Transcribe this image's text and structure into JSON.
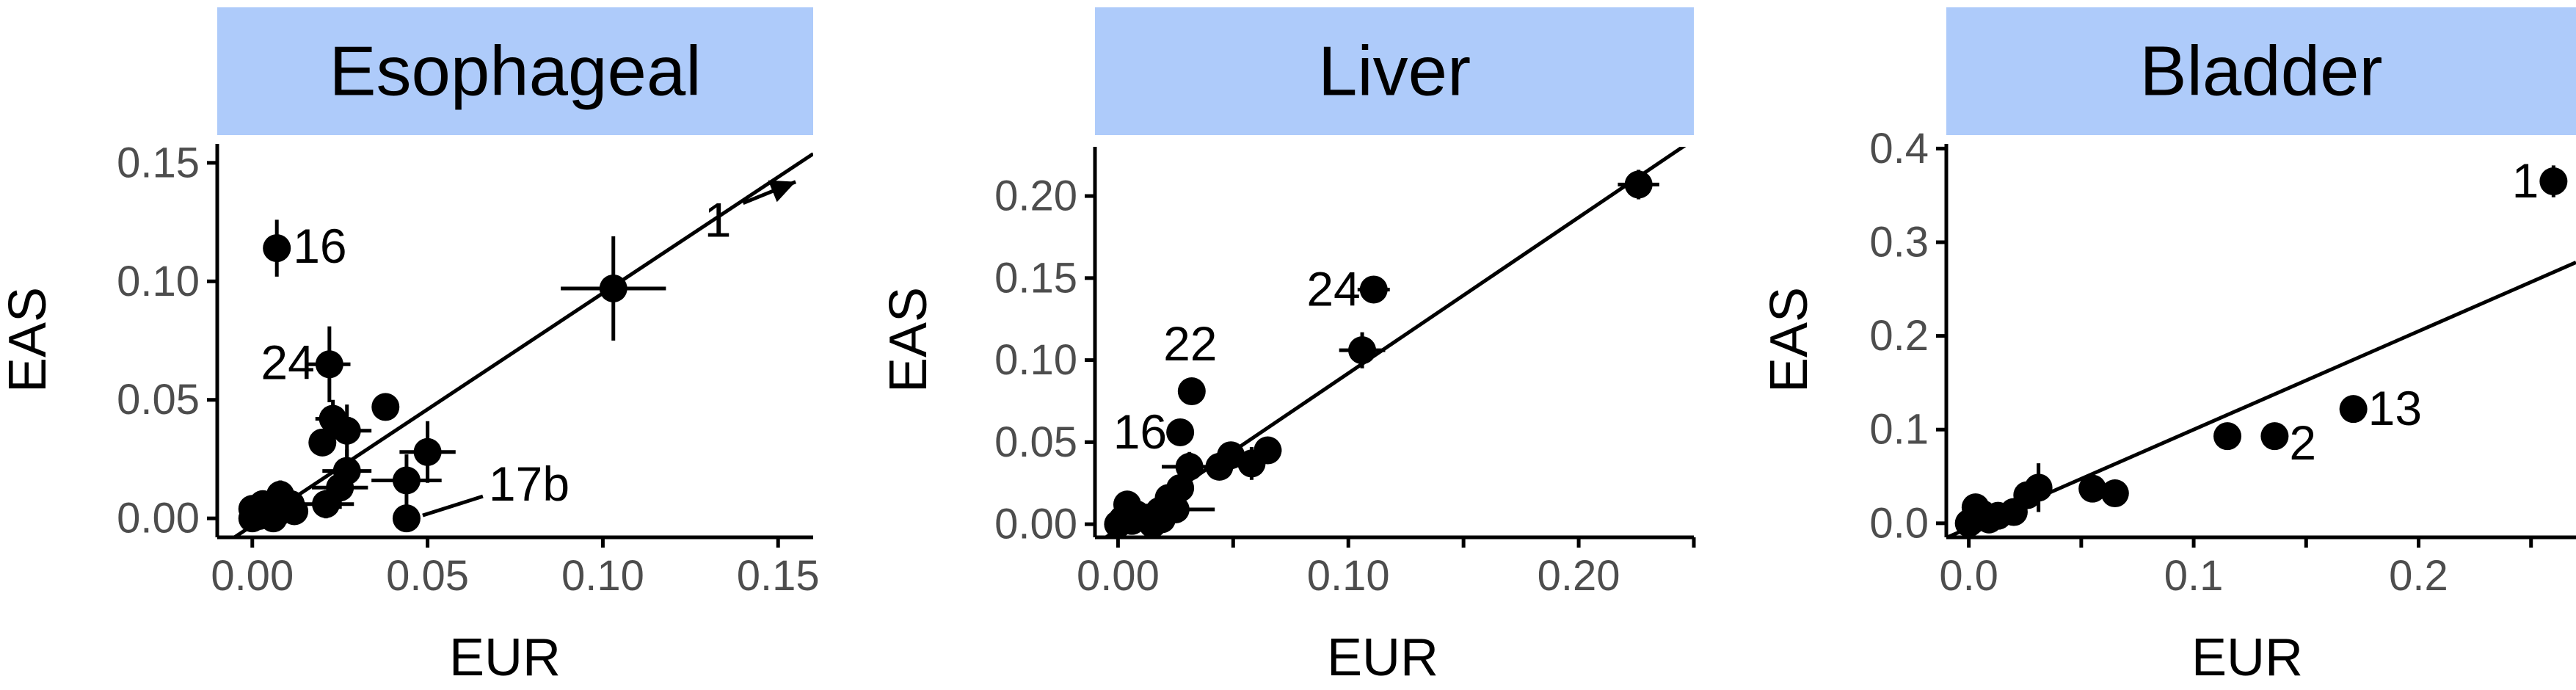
{
  "colors": {
    "strip": "#aecbfa",
    "point": "#000000",
    "axis": "#000000",
    "tick_label": "#4d4d4d"
  },
  "chart_data": [
    {
      "type": "scatter",
      "title": "Esophageal",
      "xlabel": "EUR",
      "ylabel": "EAS",
      "xlim": [
        -0.01,
        0.16
      ],
      "ylim": [
        -0.008,
        0.158
      ],
      "x_ticks": [
        "0.00",
        "0.05",
        "0.10",
        "0.15"
      ],
      "y_ticks": [
        "0.00",
        "0.05",
        "0.10",
        "0.15"
      ],
      "x_tick_values": [
        0,
        0.05,
        0.1,
        0.15
      ],
      "y_tick_values": [
        0,
        0.05,
        0.1,
        0.15
      ],
      "fit_line": {
        "slope": 0.98,
        "intercept": -0.003
      },
      "points": [
        {
          "x": 0.007,
          "y": 0.114,
          "ex": 0.002,
          "ey": 0.012,
          "label": "16"
        },
        {
          "x": 0.103,
          "y": 0.097,
          "ex": 0.015,
          "ey": 0.022,
          "label": ""
        },
        {
          "x": 0.022,
          "y": 0.065,
          "ex": 0.006,
          "ey": 0.016,
          "label": "24"
        },
        {
          "x": 0.038,
          "y": 0.047,
          "ex": 0.0,
          "ey": 0.0,
          "label": ""
        },
        {
          "x": 0.023,
          "y": 0.042,
          "ex": 0.005,
          "ey": 0.008,
          "label": ""
        },
        {
          "x": 0.027,
          "y": 0.037,
          "ex": 0.007,
          "ey": 0.011,
          "label": ""
        },
        {
          "x": 0.02,
          "y": 0.032,
          "ex": 0.0,
          "ey": 0.0,
          "label": ""
        },
        {
          "x": 0.05,
          "y": 0.028,
          "ex": 0.008,
          "ey": 0.013,
          "label": ""
        },
        {
          "x": 0.027,
          "y": 0.02,
          "ex": 0.007,
          "ey": 0.009,
          "label": ""
        },
        {
          "x": 0.044,
          "y": 0.016,
          "ex": 0.01,
          "ey": 0.011,
          "label": ""
        },
        {
          "x": 0.025,
          "y": 0.013,
          "ex": 0.008,
          "ey": 0.009,
          "label": ""
        },
        {
          "x": 0.021,
          "y": 0.006,
          "ex": 0.008,
          "ey": 0.006,
          "label": ""
        },
        {
          "x": 0.044,
          "y": 0.0,
          "ex": 0.0,
          "ey": 0.0,
          "label": "17b"
        },
        {
          "x": 0.008,
          "y": 0.01,
          "ex": 0.004,
          "ey": 0.006,
          "label": ""
        },
        {
          "x": 0.011,
          "y": 0.006,
          "ex": 0.004,
          "ey": 0.0,
          "label": ""
        },
        {
          "x": 0.005,
          "y": 0.004,
          "ex": 0.003,
          "ey": 0.004,
          "label": ""
        },
        {
          "x": 0.007,
          "y": 0.002,
          "ex": 0.0,
          "ey": 0.003,
          "label": ""
        },
        {
          "x": 0.003,
          "y": 0.006,
          "ex": 0.0,
          "ey": 0.0,
          "label": ""
        },
        {
          "x": 0.002,
          "y": 0.001,
          "ex": 0.0,
          "ey": 0.0,
          "label": ""
        },
        {
          "x": 0.0,
          "y": 0.0,
          "ex": 0.0,
          "ey": 0.0,
          "label": ""
        },
        {
          "x": 0.0,
          "y": 0.004,
          "ex": 0.0,
          "ey": 0.0,
          "label": ""
        },
        {
          "x": 0.006,
          "y": 0.0,
          "ex": 0.0,
          "ey": 0.0,
          "label": ""
        },
        {
          "x": 0.012,
          "y": 0.003,
          "ex": 0.0,
          "ey": 0.0,
          "label": ""
        }
      ],
      "offscale": {
        "label": "1",
        "arrow_from": [
          0.14,
          0.133
        ],
        "arrow_to": [
          0.155,
          0.142
        ]
      }
    },
    {
      "type": "scatter",
      "title": "Liver",
      "xlabel": "EUR",
      "ylabel": "EAS",
      "xlim": [
        -0.01,
        0.25
      ],
      "ylim": [
        -0.008,
        0.23
      ],
      "x_ticks": [
        "0.00",
        "0.10",
        "0.20"
      ],
      "y_ticks": [
        "0.00",
        "0.05",
        "0.10",
        "0.15",
        "0.20"
      ],
      "x_tick_values": [
        0,
        0.1,
        0.2
      ],
      "y_tick_values": [
        0,
        0.05,
        0.1,
        0.15,
        0.2
      ],
      "x_minor_ticks": [
        0.05,
        0.15,
        0.25
      ],
      "fit_line": {
        "slope": 0.95,
        "intercept": -0.003
      },
      "points": [
        {
          "x": 0.226,
          "y": 0.207,
          "ex": 0.009,
          "ey": 0.009,
          "label": ""
        },
        {
          "x": 0.111,
          "y": 0.143,
          "ex": 0.007,
          "ey": 0.004,
          "label": "24"
        },
        {
          "x": 0.106,
          "y": 0.106,
          "ex": 0.01,
          "ey": 0.011,
          "label": ""
        },
        {
          "x": 0.032,
          "y": 0.081,
          "ex": 0.0,
          "ey": 0.0,
          "label": "22"
        },
        {
          "x": 0.027,
          "y": 0.056,
          "ex": 0.0,
          "ey": 0.0,
          "label": "16"
        },
        {
          "x": 0.065,
          "y": 0.045,
          "ex": 0.006,
          "ey": 0.006,
          "label": ""
        },
        {
          "x": 0.049,
          "y": 0.042,
          "ex": 0.006,
          "ey": 0.007,
          "label": ""
        },
        {
          "x": 0.058,
          "y": 0.037,
          "ex": 0.005,
          "ey": 0.01,
          "label": ""
        },
        {
          "x": 0.044,
          "y": 0.035,
          "ex": 0.0,
          "ey": 0.0,
          "label": ""
        },
        {
          "x": 0.031,
          "y": 0.035,
          "ex": 0.012,
          "ey": 0.009,
          "label": ""
        },
        {
          "x": 0.027,
          "y": 0.022,
          "ex": 0.0,
          "ey": 0.0,
          "label": ""
        },
        {
          "x": 0.022,
          "y": 0.016,
          "ex": 0.0,
          "ey": 0.0,
          "label": ""
        },
        {
          "x": 0.025,
          "y": 0.009,
          "ex": 0.017,
          "ey": 0.0,
          "label": ""
        },
        {
          "x": 0.018,
          "y": 0.008,
          "ex": 0.0,
          "ey": 0.0,
          "label": ""
        },
        {
          "x": 0.013,
          "y": 0.004,
          "ex": 0.007,
          "ey": 0.0,
          "label": ""
        },
        {
          "x": 0.008,
          "y": 0.006,
          "ex": 0.005,
          "ey": 0.0,
          "label": ""
        },
        {
          "x": 0.004,
          "y": 0.012,
          "ex": 0.005,
          "ey": 0.0,
          "label": ""
        },
        {
          "x": 0.006,
          "y": 0.002,
          "ex": 0.0,
          "ey": 0.0,
          "label": ""
        },
        {
          "x": 0.002,
          "y": 0.003,
          "ex": 0.0,
          "ey": 0.0,
          "label": ""
        },
        {
          "x": 0.0,
          "y": 0.0,
          "ex": 0.0,
          "ey": 0.0,
          "label": ""
        },
        {
          "x": 0.015,
          "y": 0.0,
          "ex": 0.0,
          "ey": 0.0,
          "label": ""
        },
        {
          "x": 0.019,
          "y": 0.003,
          "ex": 0.0,
          "ey": 0.0,
          "label": ""
        }
      ]
    },
    {
      "type": "scatter",
      "title": "Bladder",
      "xlabel": "EUR",
      "ylabel": "EAS",
      "xlim": [
        -0.01,
        0.27
      ],
      "ylim": [
        -0.015,
        0.405
      ],
      "x_ticks": [
        "0.0",
        "0.1",
        "0.2"
      ],
      "y_ticks": [
        "0.0",
        "0.1",
        "0.2",
        "0.3",
        "0.4"
      ],
      "x_tick_values": [
        0,
        0.1,
        0.2
      ],
      "y_tick_values": [
        0,
        0.1,
        0.2,
        0.3,
        0.4
      ],
      "x_minor_ticks": [
        0.05,
        0.15,
        0.25
      ],
      "fit_line": {
        "slope": 1.05,
        "intercept": -0.005
      },
      "points": [
        {
          "x": 0.26,
          "y": 0.365,
          "ex": 0.0,
          "ey": 0.017,
          "label": "1"
        },
        {
          "x": 0.171,
          "y": 0.122,
          "ex": 0.0,
          "ey": 0.0,
          "label": "13"
        },
        {
          "x": 0.136,
          "y": 0.093,
          "ex": 0.0,
          "ey": 0.0,
          "label": "2"
        },
        {
          "x": 0.115,
          "y": 0.093,
          "ex": 0.0,
          "ey": 0.012,
          "label": ""
        },
        {
          "x": 0.065,
          "y": 0.032,
          "ex": 0.0,
          "ey": 0.0,
          "label": ""
        },
        {
          "x": 0.055,
          "y": 0.037,
          "ex": 0.0,
          "ey": 0.0,
          "label": ""
        },
        {
          "x": 0.031,
          "y": 0.038,
          "ex": 0.0,
          "ey": 0.026,
          "label": ""
        },
        {
          "x": 0.026,
          "y": 0.03,
          "ex": 0.0,
          "ey": 0.0,
          "label": ""
        },
        {
          "x": 0.02,
          "y": 0.012,
          "ex": 0.0,
          "ey": 0.0,
          "label": ""
        },
        {
          "x": 0.013,
          "y": 0.008,
          "ex": 0.0,
          "ey": 0.0,
          "label": ""
        },
        {
          "x": 0.006,
          "y": 0.01,
          "ex": 0.0,
          "ey": 0.0,
          "label": ""
        },
        {
          "x": 0.003,
          "y": 0.017,
          "ex": 0.0,
          "ey": 0.0,
          "label": ""
        },
        {
          "x": 0.001,
          "y": 0.002,
          "ex": 0.0,
          "ey": 0.0,
          "label": ""
        },
        {
          "x": 0.009,
          "y": 0.004,
          "ex": 0.0,
          "ey": 0.0,
          "label": ""
        },
        {
          "x": 0.0,
          "y": 0.0,
          "ex": 0.0,
          "ey": 0.0,
          "label": ""
        }
      ]
    }
  ]
}
